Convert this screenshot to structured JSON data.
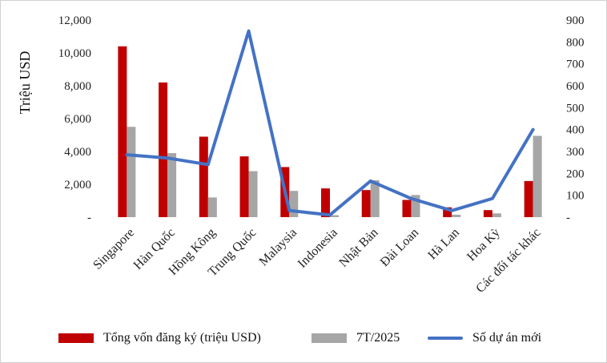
{
  "chart_data": {
    "type": "bar",
    "categories": [
      "Singapore",
      "Hàn Quốc",
      "Hồng Kông",
      "Trung Quốc",
      "Malaysia",
      "Indonesia",
      "Nhật Bản",
      "Đài Loan",
      "Hà Lan",
      "Hoa Kỳ",
      "Các đối tác khác"
    ],
    "ylabel": "Triệu USD",
    "ylim": [
      0,
      12000
    ],
    "y_ticks": [
      "-",
      "2,000",
      "4,000",
      "6,000",
      "8,000",
      "10,000",
      "12,000"
    ],
    "y2lim": [
      0,
      900
    ],
    "y2_ticks": [
      "-",
      "100",
      "200",
      "300",
      "400",
      "500",
      "600",
      "700",
      "800",
      "900"
    ],
    "grid": false,
    "legend_position": "bottom",
    "series": [
      {
        "name": "Tổng vốn đăng ký (triệu USD)",
        "type": "bar",
        "axis": "left",
        "color": "#c00000",
        "values": [
          10400,
          8200,
          4900,
          3700,
          3050,
          1750,
          1650,
          1050,
          600,
          430,
          2200
        ]
      },
      {
        "name": "7T/2025",
        "type": "bar",
        "axis": "left",
        "color": "#a6a6a6",
        "values": [
          5500,
          3900,
          1200,
          2800,
          1600,
          120,
          2250,
          1350,
          150,
          230,
          4950
        ]
      },
      {
        "name": "Số dự án mới",
        "type": "line",
        "axis": "right",
        "color": "#4472c4",
        "values": [
          285,
          270,
          240,
          850,
          30,
          10,
          165,
          85,
          30,
          85,
          400
        ]
      }
    ]
  }
}
